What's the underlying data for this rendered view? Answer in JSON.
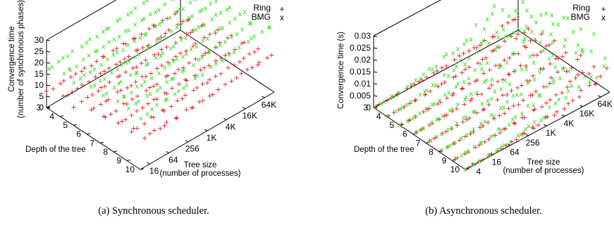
{
  "colors": {
    "Ring": "#e8141a",
    "BMG": "#33e01c",
    "axis": "#000000"
  },
  "chart_data": [
    {
      "type": "scatter3d",
      "caption": "(a) Synchronous scheduler.",
      "legend_position": "top-right",
      "legend": [
        {
          "name": "Ring",
          "marker": "+"
        },
        {
          "name": "BMG",
          "marker": "x"
        }
      ],
      "z_label_line1": "Convergence time",
      "z_label_line2": "(number of synchronous phases)",
      "zlim": [
        0,
        30
      ],
      "z_ticks": [
        "0",
        "5",
        "10",
        "15",
        "20",
        "25",
        "30"
      ],
      "depth_label": "Depth of the tree",
      "depth_ticks": [
        "3",
        "4",
        "5",
        "6",
        "7",
        "8",
        "9",
        "10"
      ],
      "size_label_line1": "Tree size",
      "size_label_line2": "(number of processes)",
      "size_ticks": [
        "16",
        "64",
        "256",
        "1K",
        "4K",
        "16K",
        "64K"
      ],
      "series": [
        {
          "name": "Ring",
          "marker": "+",
          "depths": [
            3,
            4,
            5,
            6,
            7,
            8,
            9,
            10
          ],
          "approx_convergence_time": [
            8,
            9,
            10,
            11,
            12,
            13,
            14,
            15
          ]
        },
        {
          "name": "BMG",
          "marker": "x",
          "depths": [
            3,
            4,
            5,
            6,
            7,
            8,
            9,
            10
          ],
          "approx_convergence_time": [
            20,
            21,
            22,
            23,
            24,
            25,
            26,
            27
          ]
        }
      ]
    },
    {
      "type": "scatter3d",
      "caption": "(b) Asynchronous scheduler.",
      "legend_position": "top-right",
      "legend": [
        {
          "name": "Ring",
          "marker": "+"
        },
        {
          "name": "BMG",
          "marker": "x"
        }
      ],
      "z_label_line1": "Convergence time (s)",
      "z_label_line2": "",
      "zlim": [
        0,
        0.03
      ],
      "z_ticks": [
        "0",
        "0.005",
        "0.01",
        "0.015",
        "0.02",
        "0.025",
        "0.03"
      ],
      "depth_label": "Depth of the tree",
      "depth_ticks": [
        "3",
        "4",
        "5",
        "6",
        "7",
        "8",
        "9",
        "10"
      ],
      "size_label_line1": "Tree size",
      "size_label_line2": "(number of processes)",
      "size_ticks": [
        "4",
        "16",
        "64",
        "256",
        "1K",
        "4K",
        "16K",
        "64K"
      ],
      "series": [
        {
          "name": "Ring",
          "marker": "+",
          "depths": [
            3,
            4,
            5,
            6,
            7,
            8,
            9,
            10
          ],
          "approx_max_convergence_time": [
            0.006,
            0.007,
            0.007,
            0.008,
            0.008,
            0.009,
            0.009,
            0.01
          ]
        },
        {
          "name": "BMG",
          "marker": "x",
          "depths": [
            3,
            4,
            5,
            6,
            7,
            8,
            9,
            10
          ],
          "approx_max_convergence_time": [
            0.02,
            0.021,
            0.022,
            0.022,
            0.023,
            0.022,
            0.021,
            0.018
          ]
        }
      ]
    }
  ]
}
